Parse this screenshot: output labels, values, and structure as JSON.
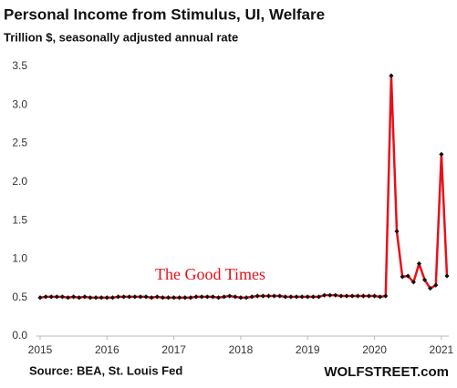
{
  "chart_data": {
    "type": "line",
    "title": "Personal Income from Stimulus, UI, Welfare",
    "subtitle": "Trillion $, seasonally adjusted annual rate",
    "annotation": "The Good Times",
    "source": "Source: BEA, St. Louis Fed",
    "brand": "WOLFSTREET.com",
    "x": [
      "2015-01",
      "2015-02",
      "2015-03",
      "2015-04",
      "2015-05",
      "2015-06",
      "2015-07",
      "2015-08",
      "2015-09",
      "2015-10",
      "2015-11",
      "2015-12",
      "2016-01",
      "2016-02",
      "2016-03",
      "2016-04",
      "2016-05",
      "2016-06",
      "2016-07",
      "2016-08",
      "2016-09",
      "2016-10",
      "2016-11",
      "2016-12",
      "2017-01",
      "2017-02",
      "2017-03",
      "2017-04",
      "2017-05",
      "2017-06",
      "2017-07",
      "2017-08",
      "2017-09",
      "2017-10",
      "2017-11",
      "2017-12",
      "2018-01",
      "2018-02",
      "2018-03",
      "2018-04",
      "2018-05",
      "2018-06",
      "2018-07",
      "2018-08",
      "2018-09",
      "2018-10",
      "2018-11",
      "2018-12",
      "2019-01",
      "2019-02",
      "2019-03",
      "2019-04",
      "2019-05",
      "2019-06",
      "2019-07",
      "2019-08",
      "2019-09",
      "2019-10",
      "2019-11",
      "2019-12",
      "2020-01",
      "2020-02",
      "2020-03",
      "2020-04",
      "2020-05",
      "2020-06",
      "2020-07",
      "2020-08",
      "2020-09",
      "2020-10",
      "2020-11",
      "2020-12",
      "2021-01",
      "2021-02"
    ],
    "series": [
      {
        "name": "Personal income from stimulus, UI, welfare",
        "color": "#e8101a",
        "marker_color": "#111111",
        "values": [
          0.5,
          0.51,
          0.51,
          0.51,
          0.51,
          0.5,
          0.51,
          0.5,
          0.51,
          0.5,
          0.5,
          0.5,
          0.5,
          0.5,
          0.51,
          0.51,
          0.51,
          0.51,
          0.51,
          0.51,
          0.5,
          0.51,
          0.5,
          0.5,
          0.5,
          0.5,
          0.5,
          0.5,
          0.51,
          0.51,
          0.51,
          0.51,
          0.5,
          0.51,
          0.52,
          0.51,
          0.5,
          0.5,
          0.51,
          0.52,
          0.52,
          0.52,
          0.52,
          0.52,
          0.51,
          0.51,
          0.51,
          0.51,
          0.51,
          0.51,
          0.51,
          0.53,
          0.53,
          0.53,
          0.52,
          0.52,
          0.52,
          0.52,
          0.52,
          0.52,
          0.52,
          0.51,
          0.52,
          3.38,
          1.36,
          0.77,
          0.78,
          0.7,
          0.94,
          0.73,
          0.62,
          0.66,
          2.36,
          0.78
        ]
      }
    ],
    "xlim": [
      "2015-01",
      "2021-02"
    ],
    "xticks": [
      {
        "value": "2015-01",
        "label": "2015"
      },
      {
        "value": "2016-01",
        "label": "2016"
      },
      {
        "value": "2017-01",
        "label": "2017"
      },
      {
        "value": "2018-01",
        "label": "2018"
      },
      {
        "value": "2019-01",
        "label": "2019"
      },
      {
        "value": "2020-01",
        "label": "2020"
      },
      {
        "value": "2021-01",
        "label": "2021"
      }
    ],
    "ylim": [
      0,
      3.5
    ],
    "yticks": [
      {
        "value": 0,
        "label": "0.0"
      },
      0.5,
      {
        "value": 1,
        "label": "1.0"
      },
      1.5,
      {
        "value": 2,
        "label": "2.0"
      },
      2.5,
      {
        "value": 3,
        "label": "3.0"
      },
      3.5
    ],
    "grid": false
  }
}
